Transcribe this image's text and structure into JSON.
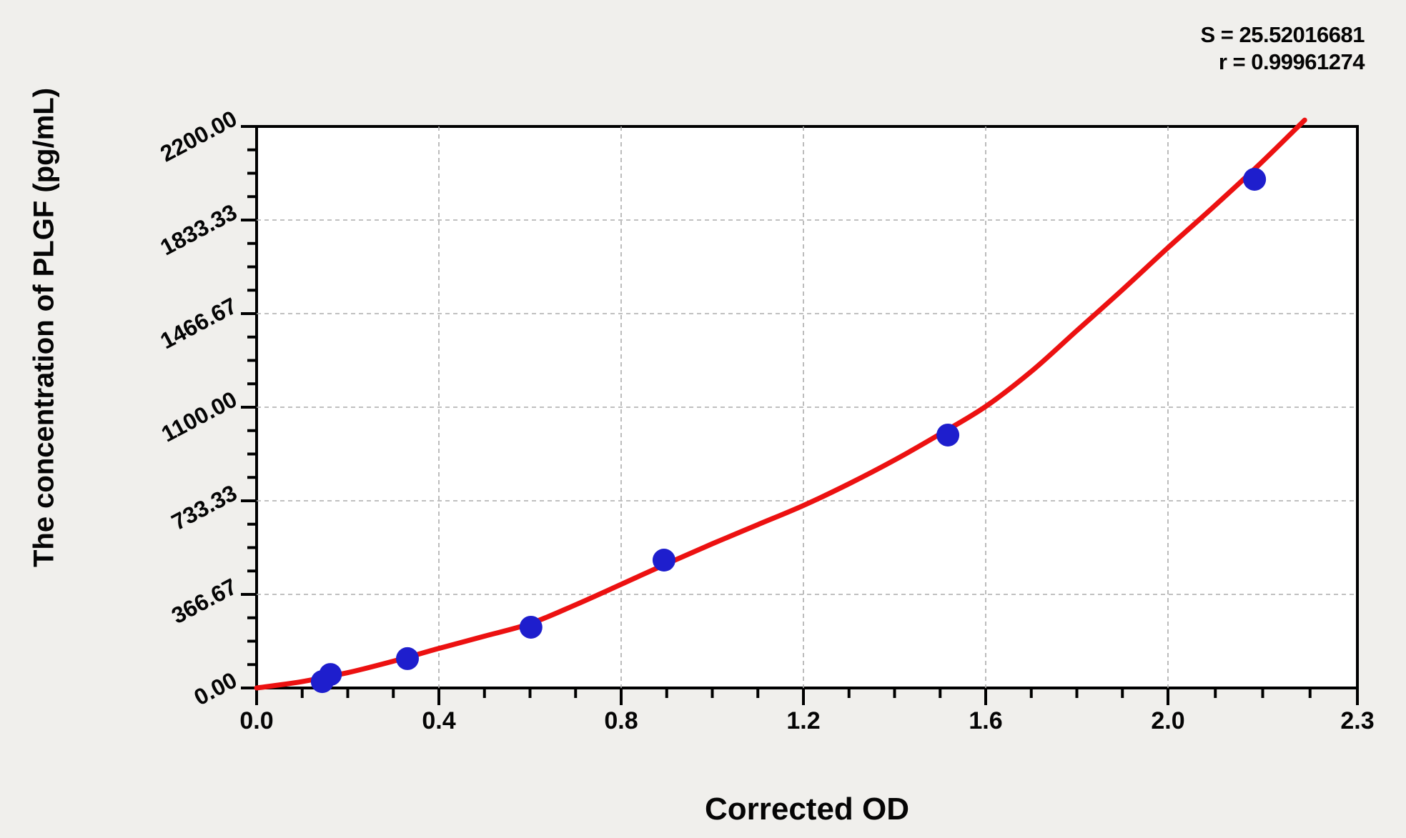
{
  "stats": {
    "s_line": "S = 25.52016681",
    "r_line": "r = 0.99961274"
  },
  "axes": {
    "x_title": "Corrected OD",
    "y_title": "The concentration of PLGF (pg/mL)"
  },
  "chart_data": {
    "type": "scatter",
    "title": "",
    "xlabel": "Corrected OD",
    "ylabel": "The concentration of PLGF (pg/mL)",
    "legend": "none",
    "grid": "dashed-gray",
    "xlim": [
      0,
      2.416
    ],
    "ylim": [
      0,
      2200
    ],
    "x_tick_labels": [
      "0.0",
      "0.4",
      "0.8",
      "1.2",
      "1.6",
      "2.0",
      "2.3"
    ],
    "x_major_tick_values": [
      0,
      0.4,
      0.8,
      1.2,
      1.6,
      2.0
    ],
    "x_axis_end_label": "2.3",
    "x_minor_divisions_per_major": 4,
    "y_tick_labels": [
      "0.00",
      "366.67",
      "733.33",
      "1100.00",
      "1466.67",
      "1833.33",
      "2200.00"
    ],
    "y_major_tick_values": [
      0,
      366.67,
      733.33,
      1100.0,
      1466.67,
      1833.33,
      2200.0
    ],
    "y_minor_divisions_per_major": 4,
    "series": [
      {
        "name": "standard-points",
        "type": "scatter",
        "color": "#1e1ecd",
        "points_x": [
          0.144,
          0.162,
          0.331,
          0.602,
          0.894,
          1.517,
          2.19
        ],
        "points_y": [
          25,
          53,
          115,
          238,
          501,
          991,
          1993
        ]
      },
      {
        "name": "fitted-curve",
        "type": "line",
        "color": "#ec1111",
        "curve_x": [
          0,
          0.1,
          0.2,
          0.3,
          0.4,
          0.5,
          0.6,
          0.7,
          0.8,
          0.9,
          1.0,
          1.1,
          1.2,
          1.3,
          1.4,
          1.5,
          1.6,
          1.7,
          1.8,
          1.9,
          2.0,
          2.1,
          2.2,
          2.3
        ],
        "curve_y": [
          0,
          25,
          60,
          105,
          155,
          203,
          252,
          326,
          406,
          487,
          565,
          640,
          715,
          800,
          893,
          995,
          1103,
          1240,
          1400,
          1560,
          1725,
          1885,
          2050,
          2225
        ]
      }
    ],
    "fit_stats": {
      "S": "25.52016681",
      "r": "0.99961274"
    },
    "colors": {
      "background": "#f0efec",
      "plot_background": "#ffffff",
      "axis": "#000000",
      "gridline": "#ababab",
      "point": "#1e1ecd",
      "curve": "#ec1111"
    }
  }
}
